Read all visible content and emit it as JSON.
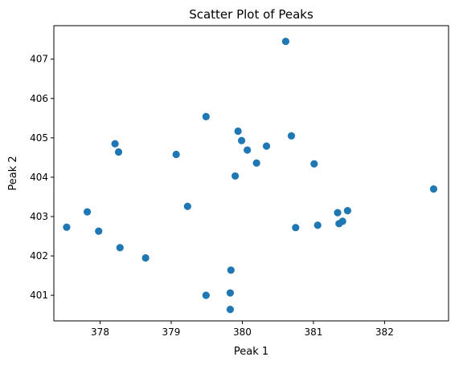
{
  "chart_data": {
    "type": "scatter",
    "title": "Scatter Plot of Peaks",
    "xlabel": "Peak 1",
    "ylabel": "Peak 2",
    "xlim": [
      377.35,
      382.9
    ],
    "ylim": [
      400.35,
      407.85
    ],
    "xticks": [
      378,
      379,
      380,
      381,
      382
    ],
    "yticks": [
      401,
      402,
      403,
      404,
      405,
      406,
      407
    ],
    "grid": false,
    "color": "#1f77b4",
    "points": [
      {
        "x": 377.53,
        "y": 402.73
      },
      {
        "x": 377.82,
        "y": 403.12
      },
      {
        "x": 377.98,
        "y": 402.63
      },
      {
        "x": 378.21,
        "y": 404.85
      },
      {
        "x": 378.26,
        "y": 404.64
      },
      {
        "x": 378.28,
        "y": 402.21
      },
      {
        "x": 378.64,
        "y": 401.95
      },
      {
        "x": 379.07,
        "y": 404.58
      },
      {
        "x": 379.23,
        "y": 403.26
      },
      {
        "x": 379.49,
        "y": 405.54
      },
      {
        "x": 379.49,
        "y": 401.0
      },
      {
        "x": 379.83,
        "y": 401.06
      },
      {
        "x": 379.84,
        "y": 401.64
      },
      {
        "x": 379.83,
        "y": 400.64
      },
      {
        "x": 379.9,
        "y": 404.03
      },
      {
        "x": 379.94,
        "y": 405.17
      },
      {
        "x": 379.99,
        "y": 404.93
      },
      {
        "x": 380.07,
        "y": 404.69
      },
      {
        "x": 380.2,
        "y": 404.36
      },
      {
        "x": 380.34,
        "y": 404.79
      },
      {
        "x": 380.61,
        "y": 407.45
      },
      {
        "x": 380.69,
        "y": 405.05
      },
      {
        "x": 380.75,
        "y": 402.72
      },
      {
        "x": 381.01,
        "y": 404.34
      },
      {
        "x": 381.06,
        "y": 402.78
      },
      {
        "x": 381.34,
        "y": 403.1
      },
      {
        "x": 381.36,
        "y": 402.82
      },
      {
        "x": 381.41,
        "y": 402.88
      },
      {
        "x": 381.48,
        "y": 403.15
      },
      {
        "x": 382.69,
        "y": 403.7
      }
    ]
  }
}
